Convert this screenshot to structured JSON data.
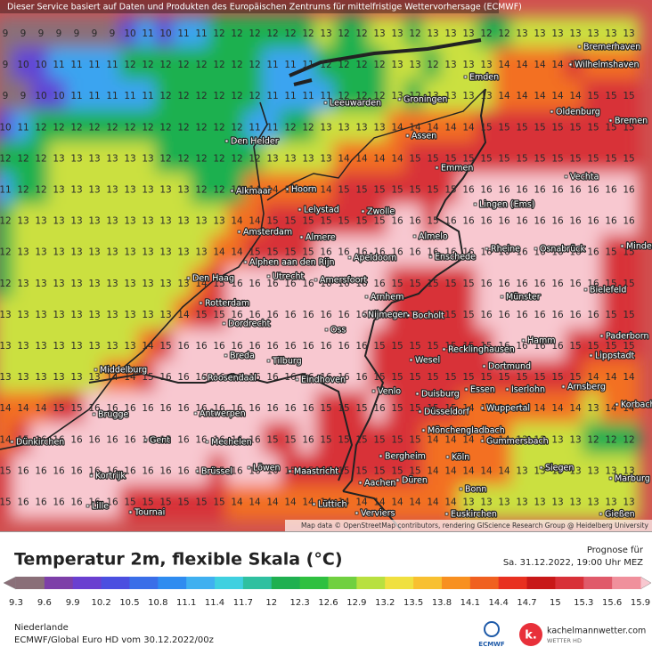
{
  "header": {
    "notice": "Dieser Service basiert auf Daten und Produkten des Europäischen Zentrums für mittelfristige Wettervorhersage (ECMWF)"
  },
  "map": {
    "grid": [
      [
        9,
        9,
        9,
        9,
        9,
        9,
        9,
        10,
        11,
        10,
        11,
        11,
        12,
        12,
        12,
        12,
        12,
        12,
        13,
        12,
        12,
        13,
        13,
        12,
        13,
        13,
        13,
        12,
        12,
        13,
        13,
        13,
        13,
        13,
        13,
        13
      ],
      [
        9,
        10,
        10,
        11,
        11,
        11,
        11,
        12,
        12,
        12,
        12,
        12,
        12,
        12,
        12,
        11,
        11,
        11,
        12,
        12,
        12,
        12,
        13,
        13,
        12,
        13,
        13,
        13,
        14,
        14,
        14,
        14,
        15,
        14,
        14,
        14
      ],
      [
        9,
        9,
        10,
        10,
        11,
        11,
        11,
        11,
        11,
        12,
        12,
        12,
        12,
        12,
        12,
        11,
        11,
        11,
        11,
        12,
        12,
        12,
        13,
        12,
        13,
        13,
        13,
        13,
        14,
        14,
        14,
        14,
        14,
        15,
        15,
        15
      ],
      [
        10,
        11,
        12,
        12,
        12,
        12,
        12,
        12,
        12,
        12,
        12,
        12,
        12,
        12,
        11,
        11,
        12,
        12,
        13,
        13,
        13,
        13,
        14,
        14,
        14,
        14,
        14,
        15,
        15,
        15,
        15,
        15,
        15,
        15,
        15,
        15
      ],
      [
        12,
        12,
        12,
        13,
        13,
        13,
        13,
        13,
        13,
        12,
        12,
        12,
        12,
        12,
        12,
        13,
        13,
        13,
        13,
        14,
        14,
        14,
        14,
        15,
        15,
        15,
        15,
        15,
        15,
        15,
        15,
        15,
        15,
        15,
        15,
        15
      ],
      [
        11,
        12,
        12,
        13,
        13,
        13,
        13,
        13,
        13,
        13,
        13,
        12,
        12,
        12,
        14,
        14,
        14,
        14,
        14,
        15,
        15,
        15,
        15,
        15,
        15,
        15,
        16,
        16,
        16,
        16,
        16,
        16,
        16,
        16,
        16,
        16
      ],
      [
        12,
        13,
        13,
        13,
        13,
        13,
        13,
        13,
        13,
        13,
        13,
        13,
        13,
        14,
        14,
        15,
        15,
        15,
        15,
        15,
        15,
        15,
        16,
        16,
        15,
        16,
        16,
        16,
        16,
        16,
        16,
        16,
        16,
        16,
        16,
        16
      ],
      [
        12,
        13,
        13,
        13,
        13,
        13,
        13,
        13,
        13,
        13,
        13,
        13,
        14,
        14,
        15,
        15,
        15,
        15,
        16,
        16,
        16,
        16,
        16,
        16,
        16,
        16,
        16,
        16,
        16,
        16,
        16,
        16,
        16,
        16,
        15,
        15
      ],
      [
        12,
        13,
        13,
        13,
        13,
        13,
        13,
        13,
        13,
        13,
        13,
        14,
        15,
        16,
        16,
        16,
        16,
        16,
        16,
        16,
        16,
        16,
        15,
        15,
        15,
        15,
        15,
        16,
        16,
        16,
        16,
        16,
        16,
        16,
        15,
        15
      ],
      [
        13,
        13,
        13,
        13,
        13,
        13,
        13,
        13,
        13,
        13,
        14,
        15,
        15,
        16,
        16,
        16,
        16,
        16,
        16,
        16,
        16,
        16,
        15,
        15,
        15,
        15,
        15,
        16,
        16,
        16,
        16,
        16,
        16,
        16,
        15,
        15
      ],
      [
        13,
        13,
        13,
        13,
        13,
        13,
        13,
        13,
        14,
        15,
        16,
        16,
        16,
        16,
        16,
        16,
        16,
        16,
        16,
        16,
        16,
        15,
        15,
        15,
        15,
        15,
        15,
        15,
        16,
        16,
        16,
        16,
        15,
        15,
        15,
        15
      ],
      [
        13,
        13,
        13,
        13,
        13,
        13,
        14,
        14,
        15,
        16,
        16,
        16,
        16,
        16,
        16,
        16,
        16,
        16,
        16,
        16,
        16,
        15,
        15,
        15,
        15,
        15,
        15,
        15,
        15,
        15,
        15,
        15,
        15,
        14,
        14,
        14
      ],
      [
        14,
        14,
        14,
        15,
        15,
        16,
        16,
        16,
        16,
        16,
        16,
        16,
        16,
        16,
        16,
        16,
        16,
        16,
        15,
        15,
        15,
        16,
        15,
        15,
        15,
        15,
        14,
        14,
        14,
        14,
        14,
        14,
        14,
        13,
        14,
        14
      ],
      [
        14,
        15,
        16,
        16,
        16,
        16,
        16,
        16,
        16,
        16,
        16,
        16,
        16,
        16,
        16,
        15,
        15,
        16,
        15,
        15,
        15,
        15,
        15,
        15,
        14,
        14,
        14,
        14,
        14,
        13,
        13,
        13,
        13,
        12,
        12,
        12
      ],
      [
        15,
        16,
        16,
        16,
        16,
        16,
        16,
        16,
        16,
        16,
        16,
        16,
        15,
        16,
        16,
        16,
        15,
        15,
        15,
        15,
        15,
        15,
        15,
        15,
        14,
        14,
        14,
        14,
        14,
        13,
        13,
        13,
        13,
        13,
        13,
        13
      ],
      [
        15,
        16,
        16,
        16,
        16,
        16,
        16,
        15,
        15,
        15,
        15,
        15,
        15,
        14,
        14,
        14,
        14,
        14,
        14,
        14,
        14,
        14,
        14,
        14,
        14,
        14,
        13,
        13,
        13,
        13,
        13,
        13,
        13,
        13,
        13,
        13
      ]
    ],
    "cities": [
      "Bremerhaven",
      "Wilhelmshaven",
      "Emden",
      "Leeuwarden",
      "Groningen",
      "Oldenburg",
      "Bremen",
      "Den Helder",
      "Assen",
      "Emmen",
      "Vechta",
      "Alkmaar",
      "Hoorn",
      "Lelystad",
      "Zwolle",
      "Lingen (Ems)",
      "Amsterdam",
      "Almere",
      "Almelo",
      "Rheine",
      "Osnabrück",
      "Minden",
      "Apeldoorn",
      "Enschede",
      "Alphen aan den Rijn",
      "Den Haag",
      "Utrecht",
      "Amersfoort",
      "Bielefeld",
      "Arnhem",
      "Münster",
      "Rotterdam",
      "Nijmegen",
      "Bocholt",
      "Dordrecht",
      "Oss",
      "Paderborn",
      "Hamm",
      "Recklinghausen",
      "Lippstadt",
      "Breda",
      "Tilburg",
      "Wesel",
      "Middelburg",
      "Dortmund",
      "Roosendaal",
      "Eindhoven",
      "Arnsberg",
      "Duisburg",
      "Essen",
      "Iserlohn",
      "Venlo",
      "Brugge",
      "Antwerpen",
      "Düsseldorf",
      "Wuppertal",
      "Korbach",
      "Mönchengladbach",
      "Gent",
      "Mechelen",
      "Gummersbach",
      "Dünkirchen",
      "Bergheim",
      "Köln",
      "Kortrijk",
      "Brüssel",
      "Löwen",
      "Maastricht",
      "Siegen",
      "Marburg",
      "Aachen",
      "Düren",
      "Bonn",
      "Lille",
      "Tournai",
      "Lüttich",
      "Verviers",
      "Euskirchen",
      "Gießen"
    ],
    "attribution": "Map data © OpenStreetMap contributors, rendering GIScience Research Group @ Heidelberg University"
  },
  "legend": {
    "title": "Temperatur 2m, flexible Skala (°C)",
    "forecast_label": "Prognose für",
    "forecast_time": "Sa. 31.12.2022, 19:00 Uhr MEZ",
    "values": [
      9.3,
      9.6,
      9.9,
      10.2,
      10.5,
      10.8,
      11.1,
      11.4,
      11.7,
      12,
      12.3,
      12.6,
      12.9,
      13.2,
      13.5,
      13.8,
      14.1,
      14.4,
      14.7,
      15,
      15.3,
      15.6,
      15.9
    ],
    "colors": [
      "#8a6f78",
      "#7d3fa8",
      "#6a3fd0",
      "#4b4fe0",
      "#3a6ee8",
      "#2f8cf0",
      "#3fb0f0",
      "#3fd0e0",
      "#2fc0a0",
      "#1fb050",
      "#2fc040",
      "#70d040",
      "#b8e040",
      "#f0e040",
      "#f8c030",
      "#f89020",
      "#f06020",
      "#e83020",
      "#c81818",
      "#d83038",
      "#e05a6a",
      "#f0909c",
      "#f8c8d0"
    ]
  },
  "footer": {
    "region": "Niederlande",
    "model": "ECMWF/Global Euro HD vom  30.12.2022/00z",
    "ecmwf": "ECMWF",
    "logo": "k.",
    "site": "kachelmannwetter.com",
    "site_sub": "WETTER HD"
  }
}
